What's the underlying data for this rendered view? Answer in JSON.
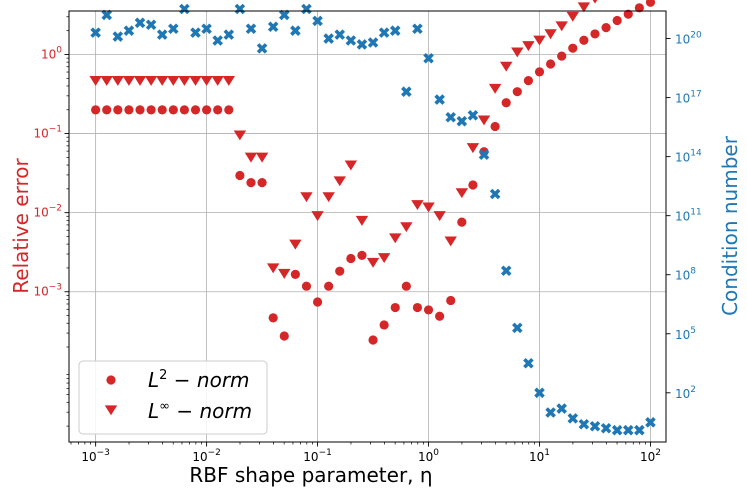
{
  "chart_data": {
    "type": "scatter",
    "title": "",
    "xlabel": "RBF shape parameter, η",
    "ylabel_left": "Relative error",
    "ylabel_right": "Condition number",
    "x_scale": "log",
    "xlim_exp": [
      -3.24,
      2.14
    ],
    "left_ylim_exp": [
      -4.9,
      0.55
    ],
    "right_ylim_exp": [
      -0.5,
      21.4
    ],
    "grid": true,
    "legend_position": "lower-left",
    "colors": {
      "red": "#d62728",
      "blue": "#1f77b4"
    },
    "x_ticks": [
      {
        "exp": -3,
        "label": "10",
        "sup": "−3"
      },
      {
        "exp": -2,
        "label": "10",
        "sup": "−2"
      },
      {
        "exp": -1,
        "label": "10",
        "sup": "−1"
      },
      {
        "exp": 0,
        "label": "10",
        "sup": "0"
      },
      {
        "exp": 1,
        "label": "10",
        "sup": "1"
      },
      {
        "exp": 2,
        "label": "10",
        "sup": "2"
      }
    ],
    "left_ticks": [
      {
        "exp": 1,
        "label": "10",
        "sup": "1"
      },
      {
        "exp": 0,
        "label": "10",
        "sup": "0"
      },
      {
        "exp": -1,
        "label": "10",
        "sup": "−1"
      },
      {
        "exp": -2,
        "label": "10",
        "sup": "−2"
      },
      {
        "exp": -3,
        "label": "10",
        "sup": "−3"
      }
    ],
    "right_ticks": [
      {
        "exp": 20,
        "label": "10",
        "sup": "20"
      },
      {
        "exp": 17,
        "label": "10",
        "sup": "17"
      },
      {
        "exp": 14,
        "label": "10",
        "sup": "14"
      },
      {
        "exp": 11,
        "label": "10",
        "sup": "11"
      },
      {
        "exp": 8,
        "label": "10",
        "sup": "8"
      },
      {
        "exp": 5,
        "label": "10",
        "sup": "5"
      },
      {
        "exp": 2,
        "label": "10",
        "sup": "2"
      }
    ],
    "legend": [
      {
        "name": "L2",
        "label_base": "L",
        "label_sup": "2",
        "label_rest": " − norm",
        "marker": "circle",
        "color": "#d62728"
      },
      {
        "name": "Linf",
        "label_base": "L",
        "label_sup": "∞",
        "label_rest": " − norm",
        "marker": "triangle-down",
        "color": "#d62728"
      }
    ],
    "x_log10": [
      -3.0,
      -2.9,
      -2.8,
      -2.7,
      -2.6,
      -2.5,
      -2.4,
      -2.3,
      -2.2,
      -2.1,
      -2.0,
      -1.9,
      -1.8,
      -1.7,
      -1.6,
      -1.5,
      -1.4,
      -1.3,
      -1.2,
      -1.1,
      -1.0,
      -0.9,
      -0.8,
      -0.7,
      -0.6,
      -0.5,
      -0.4,
      -0.3,
      -0.2,
      -0.1,
      0.0,
      0.1,
      0.2,
      0.3,
      0.4,
      0.5,
      0.6,
      0.7,
      0.8,
      0.9,
      1.0,
      1.1,
      1.2,
      1.3,
      1.4,
      1.5,
      1.6,
      1.7,
      1.8,
      1.9,
      2.0
    ],
    "series": [
      {
        "name": "L2-norm",
        "axis": "left",
        "marker": "circle",
        "color": "#d62728",
        "values_log10": [
          -0.7,
          -0.7,
          -0.7,
          -0.7,
          -0.7,
          -0.7,
          -0.7,
          -0.7,
          -0.7,
          -0.7,
          -0.7,
          -0.7,
          -0.7,
          -1.53,
          -1.62,
          -1.62,
          -3.33,
          -3.56,
          -2.78,
          -2.93,
          -3.13,
          -2.93,
          -2.74,
          -2.58,
          -2.54,
          -3.61,
          -3.42,
          -3.2,
          -2.93,
          -3.2,
          -3.23,
          -3.31,
          -3.11,
          -2.12,
          -1.65,
          -1.23,
          -0.91,
          -0.61,
          -0.47,
          -0.33,
          -0.22,
          -0.12,
          -0.02,
          0.08,
          0.18,
          0.26,
          0.34,
          0.43,
          0.51,
          0.59,
          0.66
        ]
      },
      {
        "name": "Linf-norm",
        "axis": "left",
        "marker": "triangle-down",
        "color": "#d62728",
        "values_log10": [
          -0.33,
          -0.33,
          -0.33,
          -0.33,
          -0.33,
          -0.33,
          -0.33,
          -0.33,
          -0.33,
          -0.33,
          -0.33,
          -0.33,
          -0.33,
          -1.02,
          -1.3,
          -1.3,
          -2.7,
          -2.77,
          -2.4,
          -1.8,
          -2.04,
          -1.8,
          -1.6,
          -1.4,
          -2.1,
          -2.63,
          -2.57,
          -2.32,
          -2.18,
          -1.9,
          -1.93,
          -2.04,
          -2.36,
          -1.75,
          -1.18,
          -0.83,
          -0.43,
          -0.15,
          0.03,
          0.11,
          0.18,
          0.26,
          0.36,
          0.48,
          0.6,
          0.71,
          0.82,
          0.93,
          1.06,
          1.21,
          1.38
        ]
      },
      {
        "name": "Condition number",
        "axis": "right",
        "marker": "x-filled",
        "color": "#1f77b4",
        "values_log10": [
          20.3,
          21.2,
          20.1,
          20.4,
          20.8,
          20.7,
          20.2,
          20.5,
          21.5,
          20.3,
          20.5,
          19.9,
          20.2,
          21.5,
          20.5,
          19.5,
          20.6,
          21.2,
          20.4,
          21.5,
          20.9,
          20.0,
          20.2,
          19.9,
          19.7,
          19.8,
          20.3,
          20.4,
          17.3,
          20.5,
          19.0,
          16.9,
          16.0,
          15.8,
          16.1,
          14.1,
          12.1,
          8.2,
          5.3,
          3.5,
          2.0,
          1.0,
          1.2,
          0.7,
          0.4,
          0.3,
          0.2,
          0.1,
          0.1,
          0.1,
          0.5
        ]
      }
    ]
  }
}
